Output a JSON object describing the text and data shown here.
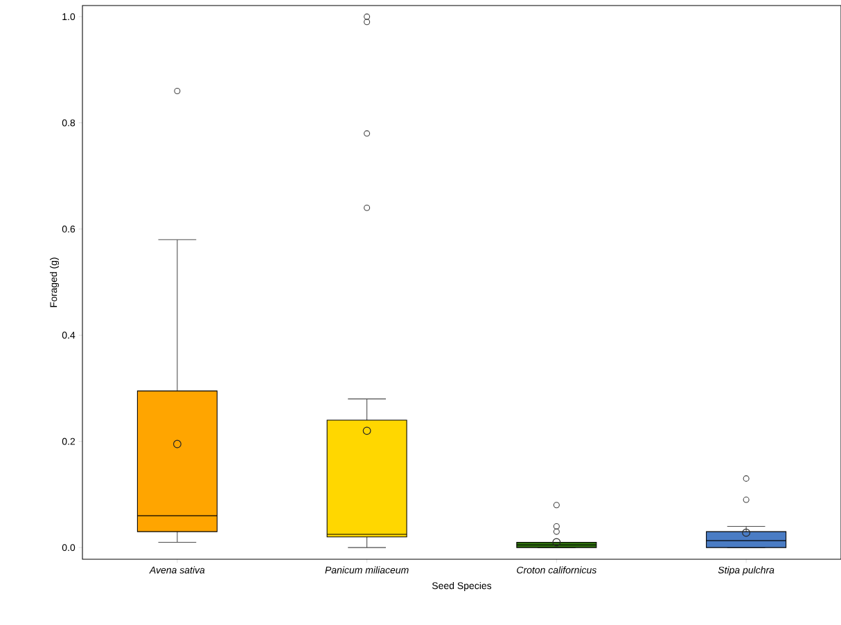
{
  "chart_data": {
    "type": "box",
    "xlabel": "Seed Species",
    "ylabel": "Foraged (g)",
    "categories": [
      "Avena sativa",
      "Panicum miliaceum",
      "Croton californicus",
      "Stipa pulchra"
    ],
    "colors": [
      "#ffa500",
      "#ffd700",
      "#2e6e0e",
      "#4a7cc4"
    ],
    "boxes": [
      {
        "low": 0.01,
        "q1": 0.03,
        "median": 0.06,
        "q3": 0.295,
        "high": 0.58,
        "mean": 0.195,
        "outliers": [
          0.86
        ]
      },
      {
        "low": 0,
        "q1": 0.02,
        "median": 0.025,
        "q3": 0.24,
        "high": 0.28,
        "mean": 0.22,
        "outliers": [
          0.64,
          0.78,
          0.99,
          1.0
        ]
      },
      {
        "low": 0,
        "q1": 0,
        "median": 0.005,
        "q3": 0.01,
        "high": 0.01,
        "mean": 0.01,
        "outliers": [
          0.03,
          0.04,
          0.08
        ]
      },
      {
        "low": 0,
        "q1": 0,
        "median": 0.013,
        "q3": 0.03,
        "high": 0.04,
        "mean": 0.028,
        "outliers": [
          0.09,
          0.13
        ]
      }
    ],
    "ylim": [
      -0.022,
      1.021
    ],
    "yticks": [
      {
        "value": 0,
        "label": "0.0"
      },
      {
        "value": 0.2,
        "label": "0.2"
      },
      {
        "value": 0.4,
        "label": "0.4"
      },
      {
        "value": 0.6,
        "label": "0.6"
      },
      {
        "value": 0.8,
        "label": "0.8"
      },
      {
        "value": 1.0,
        "label": "1.0"
      }
    ]
  }
}
